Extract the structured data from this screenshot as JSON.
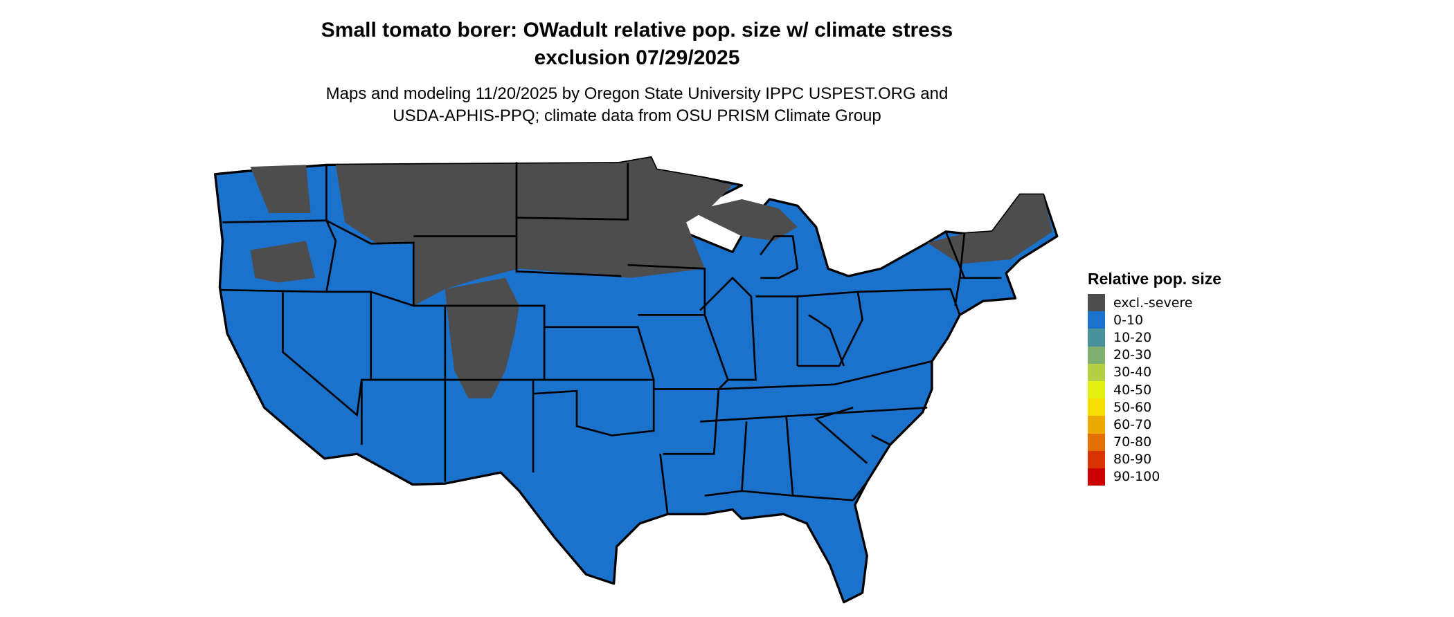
{
  "title": {
    "line1": "Small tomato borer: OWadult relative pop. size w/ climate stress",
    "line2": "exclusion 07/29/2025"
  },
  "subtitle": {
    "line1": "Maps and modeling 11/20/2025 by Oregon State University IPPC USPEST.ORG and",
    "line2": "USDA-APHIS-PPQ; climate data from OSU PRISM Climate Group"
  },
  "map": {
    "region": "Contiguous United States",
    "dominant_category": "0-10",
    "excluded_category": "excl.-severe"
  },
  "legend": {
    "title": "Relative pop. size",
    "items": [
      {
        "label": "excl.-severe",
        "color": "#4d4d4d"
      },
      {
        "label": "0-10",
        "color": "#1a72cc"
      },
      {
        "label": "10-20",
        "color": "#4a919b"
      },
      {
        "label": "20-30",
        "color": "#7eb072"
      },
      {
        "label": "30-40",
        "color": "#b3d143"
      },
      {
        "label": "40-50",
        "color": "#e4f010"
      },
      {
        "label": "50-60",
        "color": "#f7e000"
      },
      {
        "label": "60-70",
        "color": "#eeaa00"
      },
      {
        "label": "70-80",
        "color": "#e27000"
      },
      {
        "label": "80-90",
        "color": "#d83300"
      },
      {
        "label": "90-100",
        "color": "#cc0000"
      }
    ]
  }
}
